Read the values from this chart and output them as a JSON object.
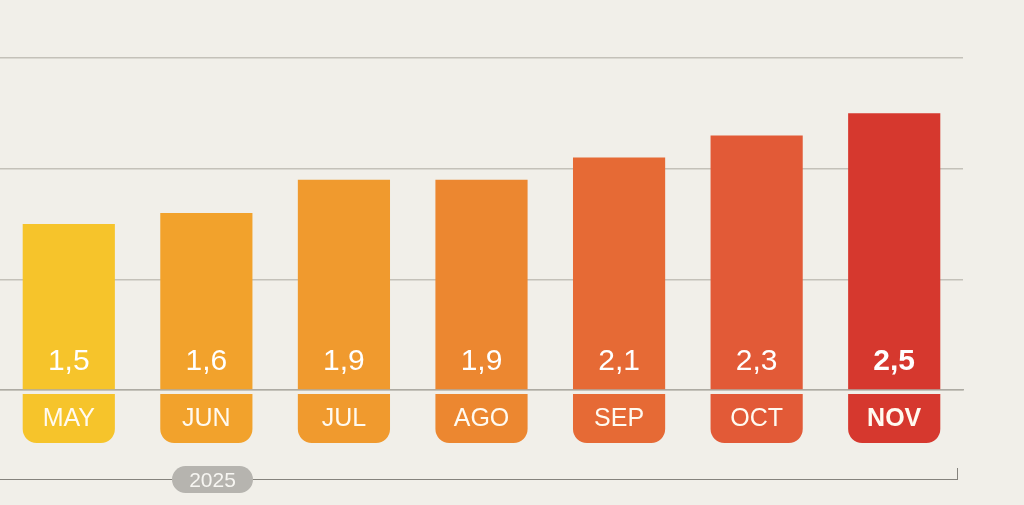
{
  "chart_data": {
    "type": "bar",
    "categories": [
      "MAY",
      "JUN",
      "JUL",
      "AGO",
      "SEP",
      "OCT",
      "NOV"
    ],
    "values": [
      1.5,
      1.6,
      1.9,
      1.9,
      2.1,
      2.3,
      2.5
    ],
    "colors": [
      "#f6c42b",
      "#f2a22c",
      "#f09a2e",
      "#ec8730",
      "#e66a35",
      "#e25a37",
      "#d6382e"
    ],
    "value_labels": [
      "1,5",
      "1,6",
      "1,9",
      "1,9",
      "2,1",
      "2,3",
      "2,5"
    ],
    "ylim": [
      0,
      3
    ],
    "yticks": [
      {
        "value": 0,
        "label": null
      },
      {
        "value": 1,
        "label": null
      },
      {
        "value": 2,
        "label": null
      },
      {
        "value": 3,
        "label": null
      }
    ],
    "grid": "y",
    "tick_labels": "x",
    "annotations": [
      "2025"
    ]
  }
}
